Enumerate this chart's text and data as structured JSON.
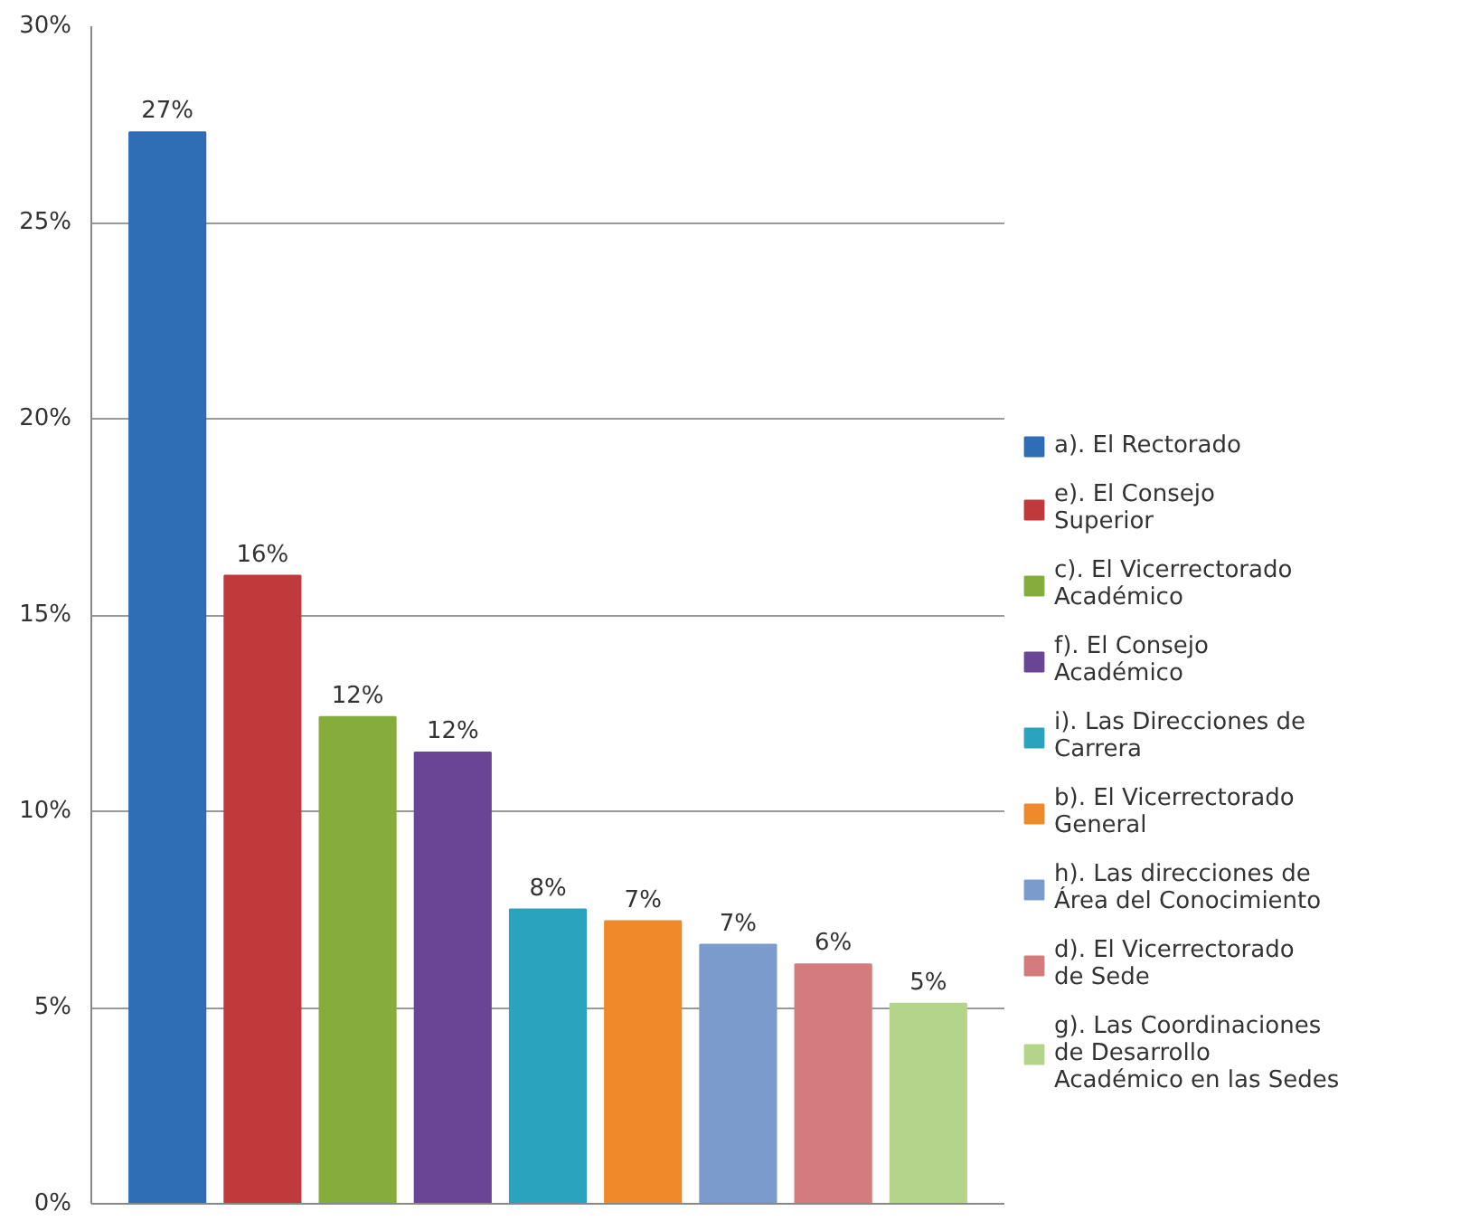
{
  "chart_data": {
    "type": "bar",
    "categories": [
      null,
      null,
      null,
      null,
      null,
      null,
      null,
      null,
      null
    ],
    "series": [
      {
        "name": "a). El Rectorado",
        "color": "#2f6db5",
        "values": [
          27.3,
          null,
          null,
          null,
          null,
          null,
          null,
          null,
          null
        ],
        "value_labels": [
          "27%",
          null,
          null,
          null,
          null,
          null,
          null,
          null,
          null
        ]
      },
      {
        "name": "e). El Consejo Superior",
        "color": "#c0393b",
        "values": [
          null,
          16.0,
          null,
          null,
          null,
          null,
          null,
          null,
          null
        ],
        "value_labels": [
          null,
          "16%",
          null,
          null,
          null,
          null,
          null,
          null,
          null
        ]
      },
      {
        "name": "c). El Vicerrectorado Académico",
        "color": "#86ad3c",
        "values": [
          null,
          null,
          12.4,
          null,
          null,
          null,
          null,
          null,
          null
        ],
        "value_labels": [
          null,
          null,
          "12%",
          null,
          null,
          null,
          null,
          null,
          null
        ]
      },
      {
        "name": "f). El Consejo Académico",
        "color": "#6a4595",
        "values": [
          null,
          null,
          null,
          11.5,
          null,
          null,
          null,
          null,
          null
        ],
        "value_labels": [
          null,
          null,
          null,
          "12%",
          null,
          null,
          null,
          null,
          null
        ]
      },
      {
        "name": "i). Las Direcciones de Carrera",
        "color": "#2aa3bf",
        "values": [
          null,
          null,
          null,
          null,
          7.5,
          null,
          null,
          null,
          null
        ],
        "value_labels": [
          null,
          null,
          null,
          null,
          "8%",
          null,
          null,
          null,
          null
        ]
      },
      {
        "name": "b). El Vicerrectorado General",
        "color": "#ee8a2a",
        "values": [
          null,
          null,
          null,
          null,
          null,
          7.2,
          null,
          null,
          null
        ],
        "value_labels": [
          null,
          null,
          null,
          null,
          null,
          "7%",
          null,
          null,
          null
        ]
      },
      {
        "name": "h). Las direcciones de Área del Conocimiento",
        "color": "#7b9bcc",
        "values": [
          null,
          null,
          null,
          null,
          null,
          null,
          6.6,
          null,
          null
        ],
        "value_labels": [
          null,
          null,
          null,
          null,
          null,
          null,
          "7%",
          null,
          null
        ]
      },
      {
        "name": "d). El Vicerrectorado de Sede",
        "color": "#d47b7d",
        "values": [
          null,
          null,
          null,
          null,
          null,
          null,
          null,
          6.1,
          null
        ],
        "value_labels": [
          null,
          null,
          null,
          null,
          null,
          null,
          null,
          "6%",
          null
        ]
      },
      {
        "name": "g). Las Coordinaciones de Desarrollo Académico en las Sedes",
        "color": "#b4d48a",
        "values": [
          null,
          null,
          null,
          null,
          null,
          null,
          null,
          null,
          5.1
        ],
        "value_labels": [
          null,
          null,
          null,
          null,
          null,
          null,
          null,
          null,
          "5%"
        ]
      }
    ],
    "ylim": [
      0,
      30
    ],
    "yticks": [
      {
        "value": 0,
        "label": "0%"
      },
      {
        "value": 5,
        "label": "5%"
      },
      {
        "value": 10,
        "label": "10%"
      },
      {
        "value": 15,
        "label": "15%"
      },
      {
        "value": 20,
        "label": "20%"
      },
      {
        "value": 25,
        "label": "25%"
      },
      {
        "value": 30,
        "label": "30%"
      }
    ],
    "grid": "y",
    "legend": "right",
    "tick_labels": "y"
  }
}
